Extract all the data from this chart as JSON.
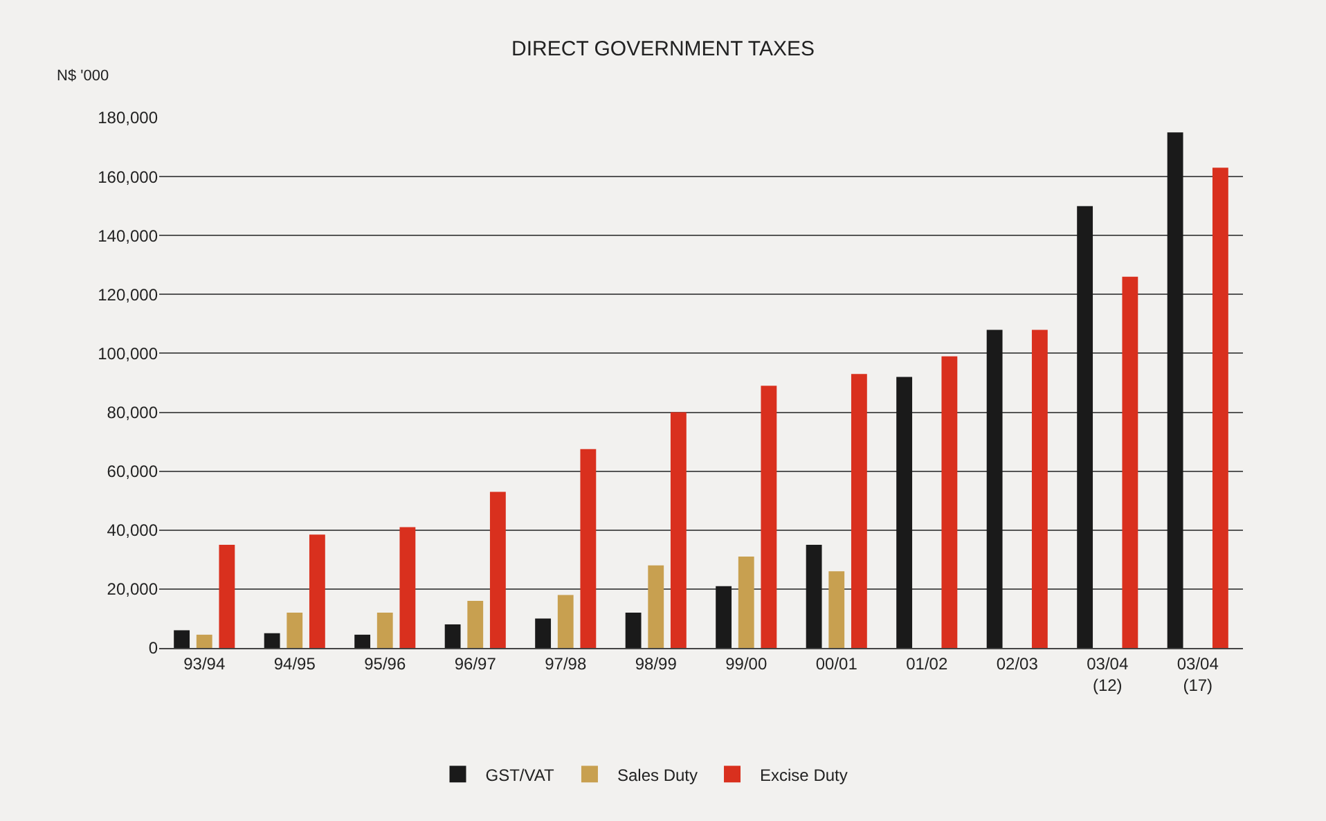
{
  "chart_data": {
    "type": "bar",
    "title": "DIRECT GOVERNMENT TAXES",
    "ylabel": "N$ '000",
    "categories": [
      "93/94",
      "94/95",
      "95/96",
      "96/97",
      "97/98",
      "98/99",
      "99/00",
      "00/01",
      "01/02",
      "02/03",
      "03/04\n(12)",
      "03/04\n(17)"
    ],
    "series": [
      {
        "name": "GST/VAT",
        "color": "#1a1a1a",
        "values": [
          6000,
          5000,
          4500,
          8000,
          10000,
          12000,
          21000,
          35000,
          92000,
          108000,
          150000,
          175000
        ]
      },
      {
        "name": "Sales Duty",
        "color": "#c8a050",
        "values": [
          4500,
          12000,
          12000,
          16000,
          18000,
          28000,
          31000,
          26000,
          null,
          null,
          null,
          null
        ]
      },
      {
        "name": "Excise Duty",
        "color": "#d9301e",
        "values": [
          35000,
          38500,
          41000,
          53000,
          67500,
          80000,
          89000,
          93000,
          99000,
          108000,
          126000,
          163000
        ]
      }
    ],
    "ylim": [
      0,
      180000
    ],
    "yticks": [
      {
        "value": 0,
        "label": "0"
      },
      {
        "value": 20000,
        "label": "20,000"
      },
      {
        "value": 40000,
        "label": "40,000"
      },
      {
        "value": 60000,
        "label": "60,000"
      },
      {
        "value": 80000,
        "label": "80,000"
      },
      {
        "value": 100000,
        "label": "100,000"
      },
      {
        "value": 120000,
        "label": "120,000"
      },
      {
        "value": 140000,
        "label": "140,000"
      },
      {
        "value": 160000,
        "label": "160,000"
      },
      {
        "value": 180000,
        "label": "180,000"
      }
    ],
    "grid": "y",
    "legend": "bottom"
  }
}
